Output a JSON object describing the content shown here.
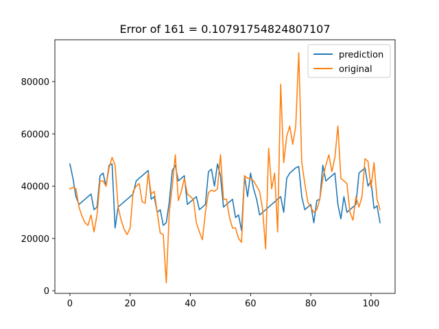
{
  "chart_data": {
    "type": "line",
    "title": "Error of 161 = 0.10791754824807107",
    "xlabel": "",
    "ylabel": "",
    "xlim": [
      -5,
      108
    ],
    "ylim": [
      -1000,
      96000
    ],
    "xticks": [
      0,
      20,
      40,
      60,
      80,
      100
    ],
    "yticks": [
      0,
      20000,
      40000,
      60000,
      80000
    ],
    "grid": false,
    "legend_position": "upper right",
    "series": [
      {
        "name": "prediction",
        "color": "#1f77b4",
        "values": [
          48500,
          43000,
          36000,
          33000,
          34000,
          35000,
          36000,
          37000,
          31000,
          32000,
          44000,
          45000,
          40000,
          48000,
          48500,
          24000,
          32000,
          33000,
          34000,
          35000,
          36000,
          37000,
          42000,
          43000,
          44000,
          45000,
          46000,
          35000,
          36000,
          30000,
          31000,
          25000,
          26000,
          34000,
          46000,
          48000,
          42000,
          43000,
          44000,
          33000,
          34000,
          35000,
          36000,
          31000,
          32000,
          33000,
          45500,
          46500,
          40000,
          48500,
          44000,
          32000,
          33000,
          34000,
          35000,
          28000,
          29000,
          23000,
          44000,
          36000,
          45000,
          39000,
          35000,
          29000,
          30000,
          31000,
          32000,
          33000,
          34000,
          35000,
          36000,
          30000,
          43000,
          45000,
          46000,
          47000,
          47500,
          36000,
          31000,
          32000,
          33000,
          26000,
          34500,
          35000,
          48000,
          42000,
          43000,
          44000,
          45000,
          33000,
          27500,
          36000,
          30000,
          31000,
          32000,
          33000,
          45000,
          46000,
          47000,
          40000,
          42000,
          31500,
          32500,
          26000
        ]
      },
      {
        "name": "original",
        "color": "#ff7f0e",
        "values": [
          39000,
          39500,
          39000,
          32000,
          28500,
          26000,
          25000,
          29000,
          22500,
          29000,
          42000,
          42000,
          40000,
          47000,
          51000,
          48000,
          32000,
          27000,
          23500,
          21500,
          24000,
          38000,
          40000,
          41000,
          34000,
          33500,
          45000,
          37000,
          38000,
          30000,
          22000,
          21500,
          3000,
          30000,
          40000,
          52000,
          34500,
          38000,
          43000,
          37000,
          36000,
          35000,
          26000,
          22500,
          19500,
          30000,
          37500,
          38500,
          38000,
          39000,
          52000,
          35000,
          35000,
          28000,
          24000,
          24000,
          20000,
          18500,
          44000,
          43000,
          43000,
          42000,
          40000,
          38000,
          31000,
          16000,
          54500,
          39000,
          45000,
          22500,
          79000,
          49000,
          59000,
          63000,
          56000,
          63000,
          91000,
          49000,
          41000,
          34000,
          32000,
          30000,
          31000,
          35000,
          43000,
          48000,
          52000,
          45500,
          51000,
          63000,
          43000,
          42000,
          41000,
          30000,
          27000,
          36000,
          32000,
          36000,
          50500,
          49500,
          39500,
          49000,
          35000,
          31000
        ]
      }
    ]
  }
}
